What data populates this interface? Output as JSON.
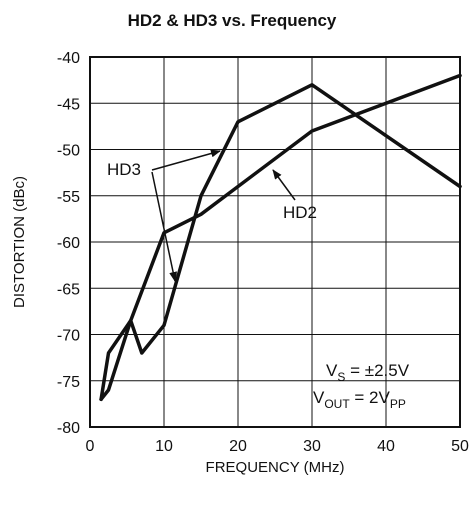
{
  "chart_data": {
    "type": "line",
    "title": "HD2 & HD3 vs. Frequency",
    "xlabel": "FREQUENCY (MHz)",
    "ylabel": "DISTORTION (dBc)",
    "xlim": [
      0,
      50
    ],
    "ylim": [
      -80,
      -40
    ],
    "xticks": [
      0,
      10,
      20,
      30,
      40,
      50
    ],
    "yticks": [
      -40,
      -45,
      -50,
      -55,
      -60,
      -65,
      -70,
      -75,
      -80
    ],
    "xtick_labels": [
      "0",
      "10",
      "20",
      "30",
      "40",
      "50"
    ],
    "ytick_labels": [
      "-40",
      "-45",
      "-50",
      "-55",
      "-60",
      "-65",
      "-70",
      "-75",
      "-80"
    ],
    "grid": true,
    "series": [
      {
        "name": "HD2",
        "x": [
          1.5,
          2.5,
          5.5,
          10,
          15,
          20,
          30,
          50
        ],
        "y": [
          -77,
          -72,
          -68.5,
          -59,
          -57,
          -54,
          -48,
          -42
        ]
      },
      {
        "name": "HD3",
        "x": [
          1.5,
          2.5,
          5.5,
          7,
          10,
          15,
          20,
          30,
          50
        ],
        "y": [
          -77,
          -76,
          -68.5,
          -72,
          -69,
          -55,
          -47,
          -43,
          -54
        ]
      }
    ],
    "annotations": {
      "hd3_label": "HD3",
      "hd2_label": "HD2",
      "vs_main": "V",
      "vs_sub": "S",
      "vs_value": " = ±2.5V",
      "vout_main": "V",
      "vout_sub": "OUT",
      "vout_eq": " = 2V",
      "vout_unit_sub": "PP"
    }
  }
}
